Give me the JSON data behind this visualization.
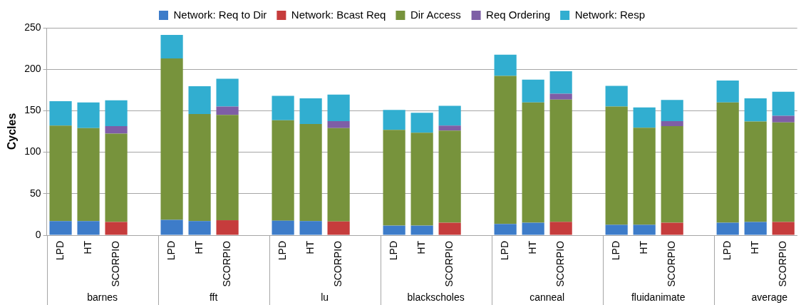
{
  "chart_data": {
    "type": "bar",
    "stacked": true,
    "ylabel": "Cycles",
    "categories": [
      "LPD",
      "HT",
      "SCORPIO",
      null,
      "LPD",
      "HT",
      "SCORPIO",
      null,
      "LPD",
      "HT",
      "SCORPIO",
      null,
      "LPD",
      "HT",
      "SCORPIO",
      null,
      "LPD",
      "HT",
      "SCORPIO",
      null,
      "LPD",
      "HT",
      "SCORPIO",
      null,
      "LPD",
      "HT",
      "SCORPIO"
    ],
    "series": [
      {
        "name": "Network: Req to Dir",
        "color": "#3d7cc9",
        "values": [
          17,
          17,
          null,
          null,
          18.5,
          17,
          null,
          null,
          17.5,
          17,
          null,
          null,
          11.5,
          11.5,
          null,
          null,
          13.5,
          15,
          null,
          null,
          12.5,
          12.5,
          null,
          null,
          15,
          16,
          null
        ]
      },
      {
        "name": "Network: Bcast Req",
        "color": "#c63c3c",
        "values": [
          null,
          null,
          16,
          null,
          null,
          null,
          18,
          null,
          null,
          null,
          16.5,
          null,
          null,
          null,
          15,
          null,
          null,
          null,
          16,
          null,
          null,
          null,
          15,
          null,
          null,
          null,
          16
        ]
      },
      {
        "name": "Dir Access",
        "color": "#77933c",
        "values": [
          115,
          112,
          106.5,
          null,
          194.5,
          129,
          127,
          null,
          121,
          117,
          112.5,
          null,
          115.5,
          112,
          111,
          null,
          178.5,
          145,
          147.5,
          null,
          142.5,
          117,
          116.5,
          null,
          145,
          121,
          120
        ]
      },
      {
        "name": "Req Ordering",
        "color": "#7e5ea6",
        "values": [
          null,
          null,
          9,
          null,
          null,
          null,
          10,
          null,
          null,
          null,
          8.5,
          null,
          null,
          null,
          6,
          null,
          null,
          null,
          7,
          null,
          null,
          null,
          6,
          null,
          null,
          null,
          8
        ]
      },
      {
        "name": "Network: Resp",
        "color": "#31aed0",
        "values": [
          29.5,
          31,
          31,
          null,
          28.5,
          33.5,
          33.5,
          null,
          29.5,
          31,
          32,
          null,
          24,
          24,
          24,
          null,
          25.5,
          27.5,
          27,
          null,
          25,
          24.5,
          25.5,
          null,
          26.5,
          28,
          29
        ]
      }
    ],
    "ylim": [
      0,
      250
    ],
    "yticks": [
      0,
      50,
      100,
      150,
      200,
      250
    ],
    "grid": "y",
    "legend": "top",
    "annotations": [
      "barnes",
      "fft",
      "lu",
      "blackscholes",
      "canneal",
      "fluidanimate",
      "average"
    ]
  }
}
